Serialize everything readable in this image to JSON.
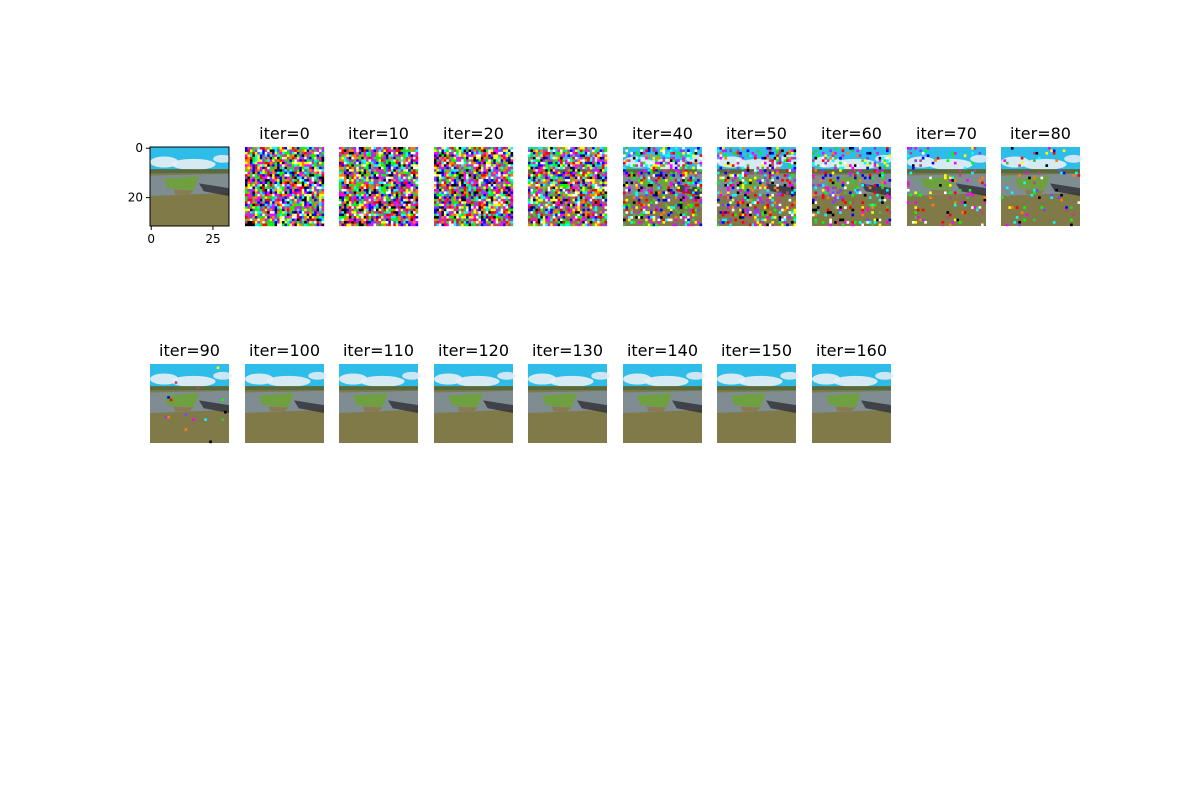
{
  "chart_data": {
    "type": "image-grid",
    "reference_image": {
      "xticks": [
        0,
        25
      ],
      "yticks": [
        0,
        20
      ],
      "xlim": [
        -0.5,
        31.5
      ],
      "ylim": [
        31.5,
        -0.5
      ]
    },
    "panels": [
      {
        "title": "iter=0",
        "noise": 1.0
      },
      {
        "title": "iter=10",
        "noise": 1.0
      },
      {
        "title": "iter=20",
        "noise": 1.0
      },
      {
        "title": "iter=30",
        "noise": 0.8
      },
      {
        "title": "iter=40",
        "noise": 0.45
      },
      {
        "title": "iter=50",
        "noise": 0.35
      },
      {
        "title": "iter=60",
        "noise": 0.25
      },
      {
        "title": "iter=70",
        "noise": 0.1
      },
      {
        "title": "iter=80",
        "noise": 0.06
      },
      {
        "title": "iter=90",
        "noise": 0.02
      },
      {
        "title": "iter=100",
        "noise": 0.0
      },
      {
        "title": "iter=110",
        "noise": 0.0
      },
      {
        "title": "iter=120",
        "noise": 0.0
      },
      {
        "title": "iter=130",
        "noise": 0.0
      },
      {
        "title": "iter=140",
        "noise": 0.0
      },
      {
        "title": "iter=150",
        "noise": 0.0
      },
      {
        "title": "iter=160",
        "noise": 0.0
      }
    ],
    "colors": {
      "sky": "#2ebde8",
      "cloud": "#e8eef4",
      "treeline": "#5a6a3a",
      "grass": "#6fa040",
      "water": "#7f8fa0",
      "shadow": "#2a2a30",
      "field": "#7f7a48"
    }
  }
}
